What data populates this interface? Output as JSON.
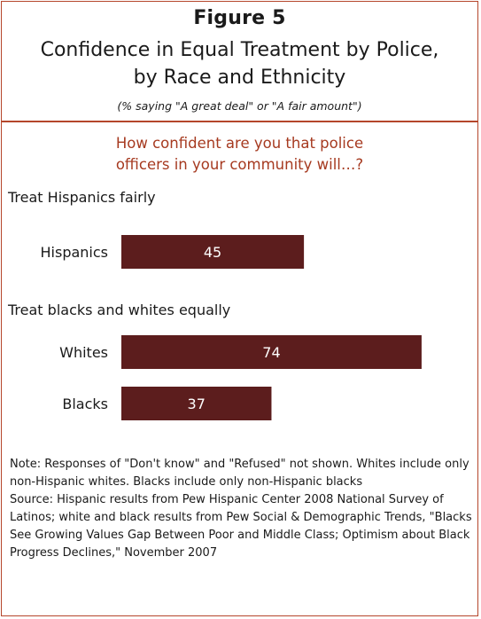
{
  "header": {
    "figure_label": "Figure 5",
    "title_line1": "Confidence in Equal Treatment by Police,",
    "title_line2": "by Race and Ethnicity",
    "subtitle": "(% saying \"A great deal\" or \"A fair amount\")"
  },
  "question": {
    "line1": "How confident are you that police",
    "line2": "officers in your community will…?"
  },
  "colors": {
    "bar": "#5c1d1d",
    "border": "#b5462b",
    "question_text": "#a63a20",
    "bar_label": "#ffffff"
  },
  "chart_data": {
    "type": "bar",
    "orientation": "horizontal",
    "groups": [
      {
        "label": "Treat Hispanics fairly",
        "bars": [
          {
            "category": "Hispanics",
            "value": 45
          }
        ]
      },
      {
        "label": "Treat blacks and whites equally",
        "bars": [
          {
            "category": "Whites",
            "value": 74
          },
          {
            "category": "Blacks",
            "value": 37
          }
        ]
      }
    ],
    "xlim": [
      0,
      100
    ],
    "grid": false,
    "legend": "none"
  },
  "notes": {
    "note": "Note: Responses of \"Don't know\" and \"Refused\" not shown. Whites include only non-Hispanic whites. Blacks include only non-Hispanic blacks",
    "source": "Source: Hispanic results from Pew Hispanic Center 2008 National Survey of Latinos; white and black results from Pew Social & Demographic Trends, \"Blacks See Growing Values Gap Between Poor and Middle Class; Optimism about Black Progress Declines,\" November 2007"
  }
}
